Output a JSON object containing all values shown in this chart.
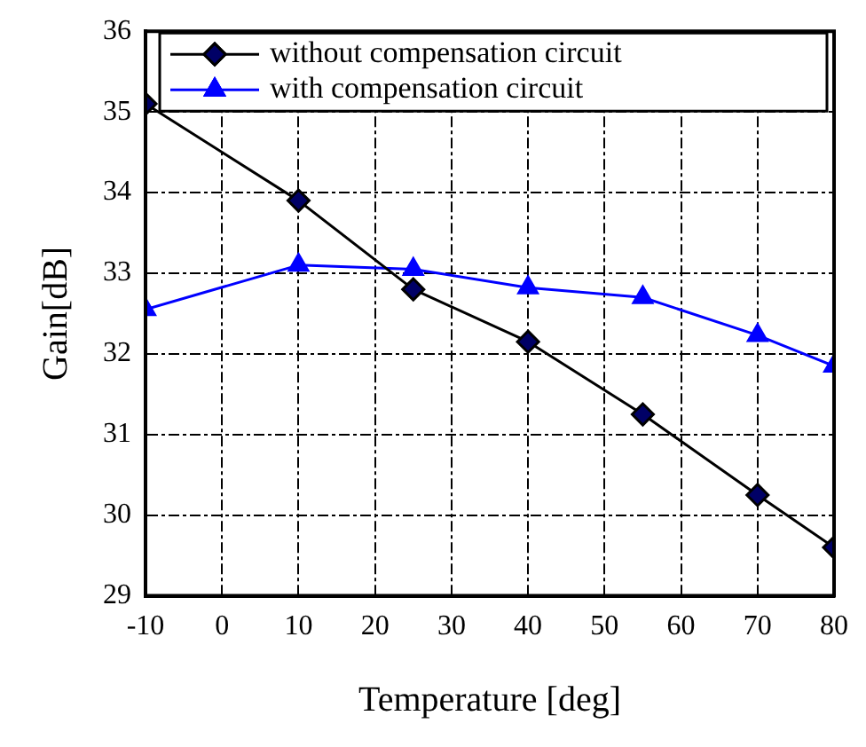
{
  "chart_data": {
    "type": "line",
    "xlabel": "Temperature [deg]",
    "ylabel": "Gain[dB]",
    "xlim": [
      -10,
      80
    ],
    "xticks": [
      -10,
      0,
      10,
      20,
      30,
      40,
      50,
      60,
      70,
      80
    ],
    "ylim": [
      29,
      36
    ],
    "yticks": [
      29,
      30,
      31,
      32,
      33,
      34,
      35,
      36
    ],
    "grid": true,
    "legend": "top",
    "line_style": "solid",
    "x": [
      -10,
      10,
      25,
      40,
      55,
      70,
      80
    ],
    "series": [
      {
        "name": "without compensation circuit",
        "color": "#000000",
        "marker": "diamond",
        "values": [
          35.1,
          33.9,
          32.8,
          32.15,
          31.25,
          30.25,
          29.6
        ]
      },
      {
        "name": "with compensation circuit",
        "color": "#0000ff",
        "marker": "triangle",
        "values": [
          32.55,
          33.1,
          33.05,
          32.82,
          32.7,
          32.23,
          31.85
        ]
      }
    ]
  }
}
